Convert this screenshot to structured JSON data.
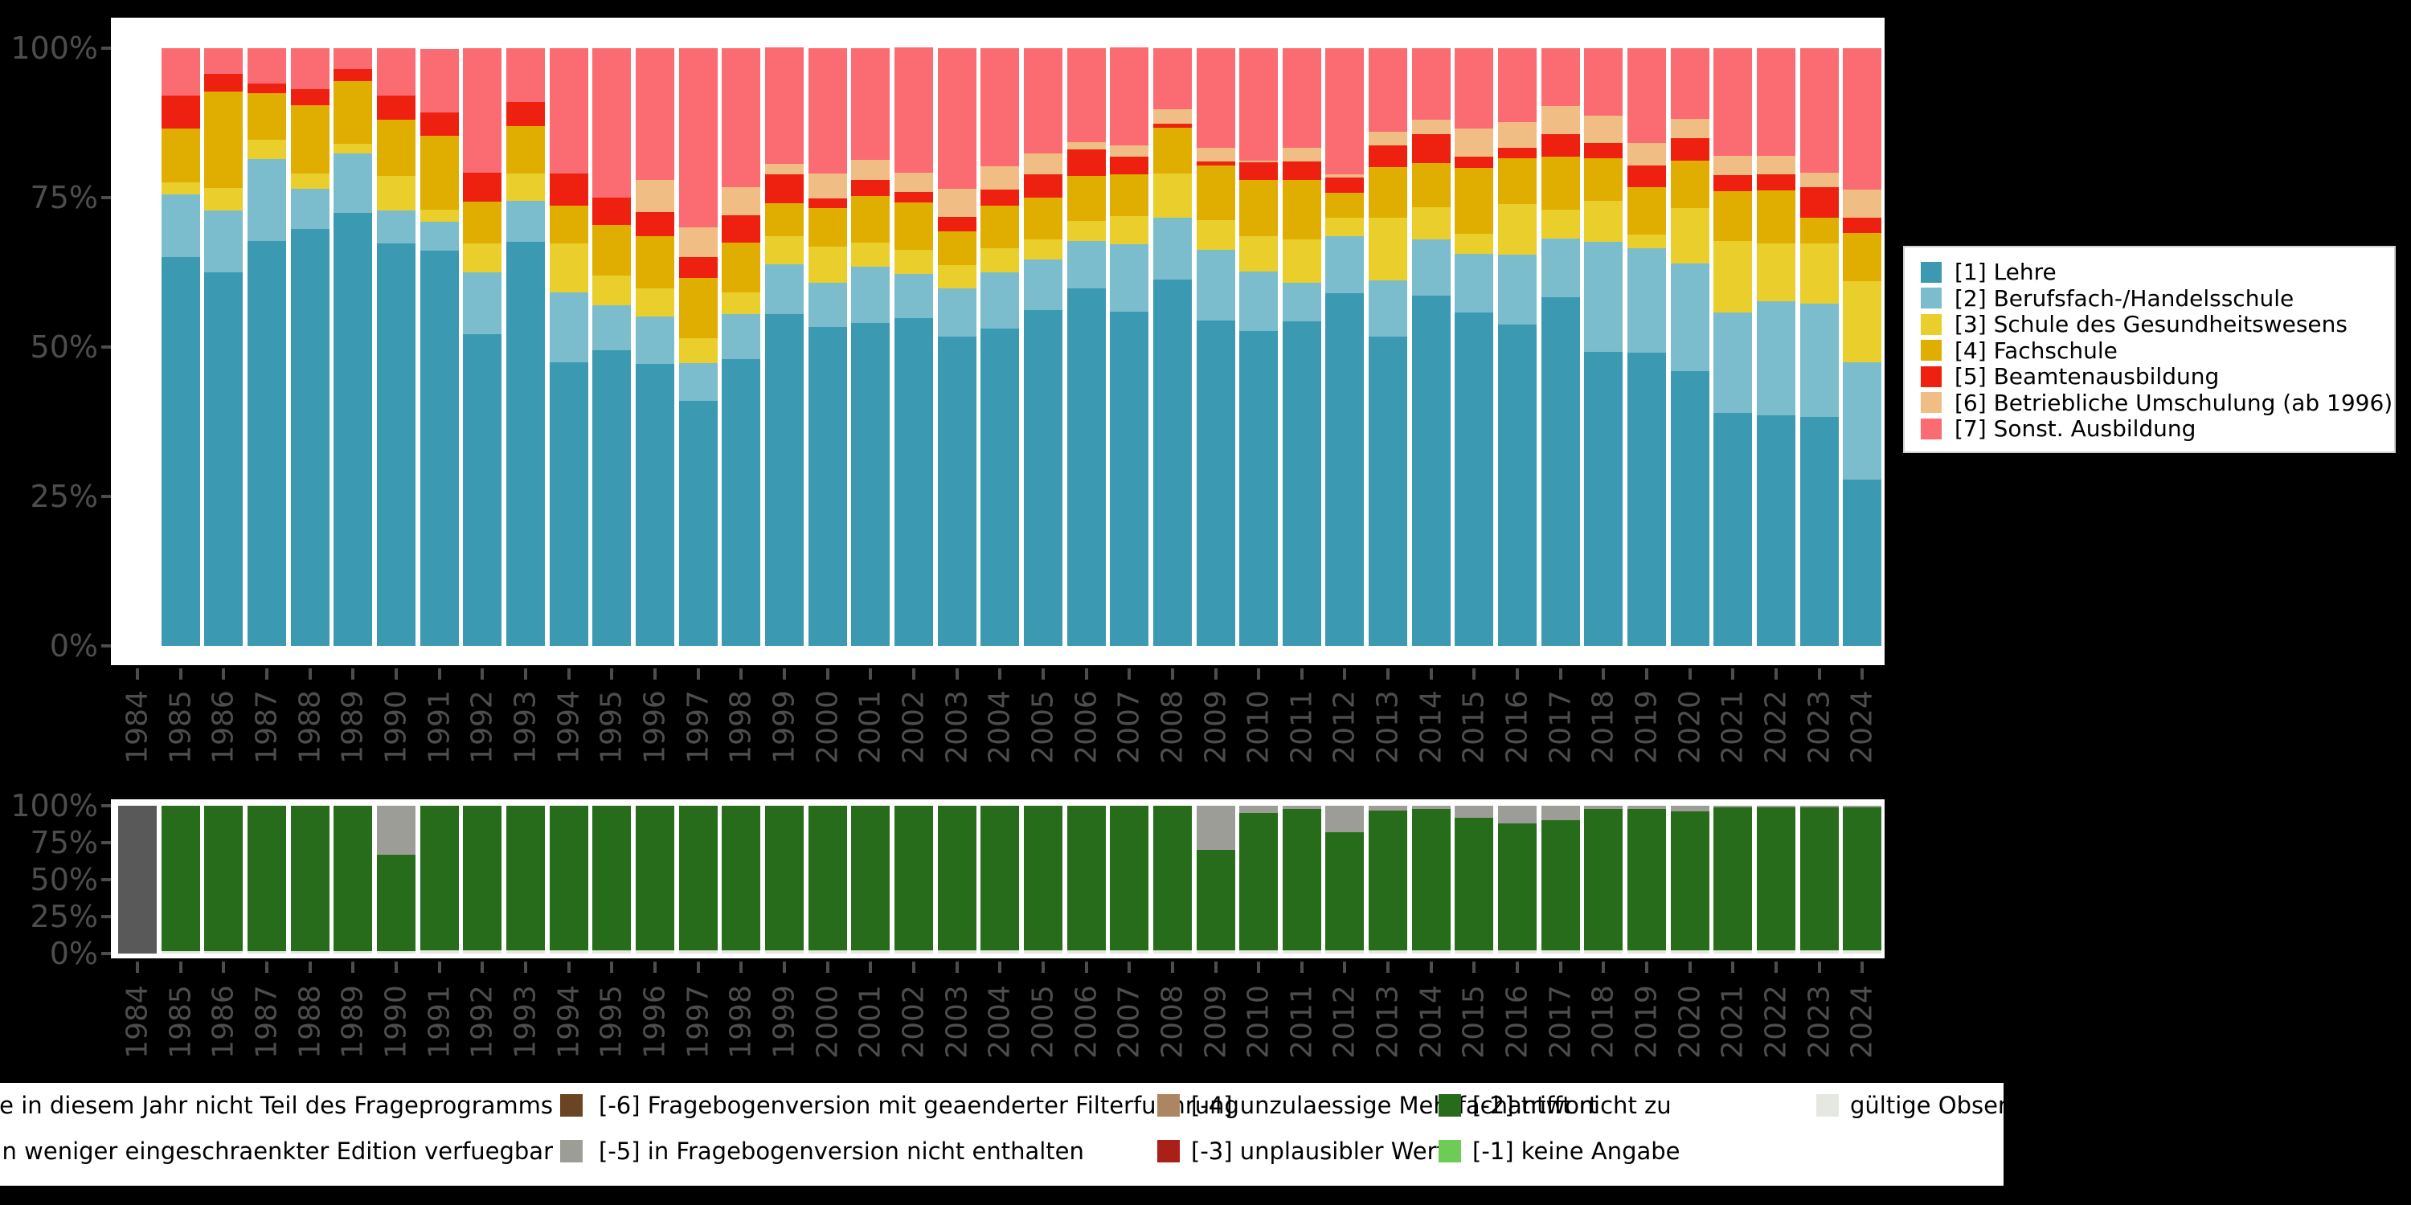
{
  "colors": {
    "background": "#000000",
    "panel": "#ffffff",
    "axis_text": "#4d4d4d"
  },
  "chart_data": [
    {
      "name": "ausbildung-typ",
      "type": "bar",
      "subtype": "stacked-percent",
      "ylabel": "",
      "xlabel": "",
      "ylim": [
        0,
        100
      ],
      "yticks": [
        "100%",
        "75%",
        "50%",
        "25%",
        "0%"
      ],
      "grid": false,
      "categories": [
        1984,
        1985,
        1986,
        1987,
        1988,
        1989,
        1990,
        1991,
        1992,
        1993,
        1994,
        1995,
        1996,
        1997,
        1998,
        1999,
        2000,
        2001,
        2002,
        2003,
        2004,
        2005,
        2006,
        2007,
        2008,
        2009,
        2010,
        2011,
        2012,
        2013,
        2014,
        2015,
        2016,
        2017,
        2018,
        2019,
        2020,
        2021,
        2022,
        2023,
        2024
      ],
      "series": [
        {
          "name": "[1] Lehre",
          "color": "#3C99B2",
          "values": [
            0,
            65.1,
            62.5,
            67.8,
            69.7,
            72.4,
            67.3,
            66.1,
            52.1,
            67.6,
            47.4,
            49.5,
            47.2,
            41,
            48,
            55.5,
            53.4,
            54.1,
            54.8,
            51.7,
            53.1,
            56.2,
            59.8,
            55.9,
            61.3,
            54.4,
            52.7,
            54.3,
            59,
            51.7,
            58.6,
            55.8,
            53.8,
            58.3,
            49.2,
            49,
            46,
            39,
            38.6,
            38.3,
            27.8
          ]
        },
        {
          "name": "[2] Berufsfach-/Handelsschule",
          "color": "#7CBDCD",
          "values": [
            0,
            10.4,
            10.4,
            13.7,
            6.8,
            10,
            5.5,
            4.9,
            10.4,
            6.8,
            11.7,
            7.5,
            7.9,
            6.3,
            7.5,
            8.3,
            7.4,
            9.3,
            7.4,
            8.1,
            9.4,
            8.4,
            7.9,
            11.3,
            10.4,
            11.9,
            10,
            6.5,
            9.5,
            9.5,
            9.4,
            9.8,
            11.7,
            9.9,
            18.4,
            17.6,
            18,
            16.8,
            19,
            19,
            19.7
          ]
        },
        {
          "name": "[3] Schule des Gesundheitswesens",
          "color": "#E9CE2C",
          "values": [
            0,
            2,
            3.7,
            3.2,
            2.6,
            1.6,
            5.8,
            2,
            4.8,
            4.7,
            8.2,
            5,
            4.7,
            4.2,
            3.6,
            4.7,
            6,
            4.1,
            4.1,
            3.9,
            4.1,
            3.4,
            3.4,
            4.7,
            7.4,
            4.9,
            5.8,
            7.2,
            3.1,
            10.4,
            5.4,
            3.4,
            8.4,
            4.8,
            6.8,
            2.2,
            9.3,
            11.9,
            9.8,
            10,
            13.5
          ]
        },
        {
          "name": "[4] Fachschule",
          "color": "#DFAE00",
          "values": [
            0,
            9,
            16.1,
            7.8,
            11.4,
            10.5,
            9.4,
            12.3,
            7,
            7.8,
            6.3,
            8.4,
            8.7,
            10,
            8.4,
            5.5,
            6.4,
            7.8,
            7.9,
            5.7,
            7,
            7,
            7.5,
            7,
            7.6,
            9.2,
            9.5,
            9.9,
            4.2,
            8.5,
            7.4,
            11,
            7.7,
            8.8,
            7.2,
            8,
            7.9,
            8.4,
            8.8,
            4.4,
            8.1
          ]
        },
        {
          "name": "[5] Beamtenausbildung",
          "color": "#EE2010",
          "values": [
            0,
            5.6,
            3,
            1.6,
            2.6,
            2,
            4.1,
            4,
            4.9,
            4.1,
            5.5,
            4.6,
            4.1,
            3.6,
            4.6,
            4.9,
            1.7,
            2.7,
            1.8,
            2.4,
            2.8,
            3.9,
            4.5,
            2.9,
            0.7,
            0.7,
            2.9,
            3.2,
            2.6,
            3.6,
            4.8,
            1.8,
            1.8,
            3.8,
            2.5,
            3.6,
            3.7,
            2.7,
            2.7,
            5.1,
            2.6
          ]
        },
        {
          "name": "[6] Betriebliche Umschulung (ab 1996)",
          "color": "#F0BE85",
          "values": [
            0,
            0,
            0,
            0,
            0,
            0,
            0,
            0,
            0,
            0,
            0,
            0,
            5.4,
            4.9,
            4.6,
            1.8,
            4.2,
            3.3,
            3.2,
            4.7,
            3.9,
            3.5,
            1.2,
            1.9,
            2.4,
            2.3,
            0.3,
            2.2,
            0.5,
            2.3,
            2.4,
            4.7,
            4.3,
            4.7,
            4.6,
            3.7,
            3.3,
            3.2,
            3.1,
            2.4,
            4.7
          ]
        },
        {
          "name": "[7] Sonst. Ausbildung",
          "color": "#FB6B72",
          "values": [
            0,
            7.9,
            4.3,
            5.9,
            6.9,
            3.5,
            7.9,
            10.6,
            20.8,
            9,
            20.9,
            25,
            22,
            30,
            23.3,
            19.4,
            20.9,
            18.7,
            20.9,
            23.5,
            19.7,
            17.6,
            15.7,
            16.4,
            10.2,
            16.6,
            18.8,
            16.7,
            21.1,
            14,
            12,
            13.5,
            12.3,
            9.7,
            11.3,
            15.9,
            11.8,
            18,
            18,
            20.8,
            23.6
          ]
        }
      ]
    },
    {
      "name": "missings",
      "type": "bar",
      "subtype": "stacked-percent",
      "ylim": [
        0,
        100
      ],
      "yticks": [
        "100%",
        "75%",
        "50%",
        "25%",
        "0%"
      ],
      "grid": false,
      "categories": [
        1984,
        1985,
        1986,
        1987,
        1988,
        1989,
        1990,
        1991,
        1992,
        1993,
        1994,
        1995,
        1996,
        1997,
        1998,
        1999,
        2000,
        2001,
        2002,
        2003,
        2004,
        2005,
        2006,
        2007,
        2008,
        2009,
        2010,
        2011,
        2012,
        2013,
        2014,
        2015,
        2016,
        2017,
        2018,
        2019,
        2020,
        2021,
        2022,
        2023,
        2024
      ],
      "series": [
        {
          "name": "gueltige Observationen",
          "color": "#E5E8E1",
          "values": [
            0,
            1.5,
            1.5,
            1.5,
            1.5,
            1.5,
            1.5,
            2,
            2,
            2,
            2,
            2,
            2,
            2,
            2,
            2,
            2,
            2,
            2,
            2,
            2,
            2,
            2,
            2,
            2,
            2,
            2,
            2,
            2,
            2,
            2,
            2,
            2,
            2,
            2,
            2,
            2,
            2,
            2,
            2,
            2
          ]
        },
        {
          "name": "[-2] trifft nicht zu",
          "color": "#276C1A",
          "values": [
            0,
            98.5,
            98.5,
            98.5,
            98.5,
            98.5,
            65.5,
            98,
            98,
            98,
            98,
            98,
            98,
            98,
            98,
            98,
            98,
            98,
            98,
            98,
            98,
            98,
            98,
            98,
            98,
            68,
            93,
            96,
            80,
            95,
            96,
            90,
            86,
            88,
            96,
            96,
            94,
            97,
            97,
            97,
            97
          ]
        },
        {
          "name": "[-5] in Fragebogenversion nicht enthalten",
          "color": "#9D9D97",
          "values": [
            0,
            0,
            0,
            0,
            0,
            0,
            33,
            0,
            0,
            0,
            0,
            0,
            0,
            0,
            0,
            0,
            0,
            0,
            0,
            0,
            0,
            0,
            0,
            0,
            0,
            30,
            5,
            2,
            18,
            3,
            2,
            8,
            12,
            10,
            2,
            2,
            4,
            1,
            1,
            1,
            1
          ]
        },
        {
          "name": "Frage in diesem Jahr nicht Teil des Frageprogramms",
          "color": "#595959",
          "values": [
            100,
            0,
            0,
            0,
            0,
            0,
            0,
            0,
            0,
            0,
            0,
            0,
            0,
            0,
            0,
            0,
            0,
            0,
            0,
            0,
            0,
            0,
            0,
            0,
            0,
            0,
            0,
            0,
            0,
            0,
            0,
            0,
            0,
            0,
            0,
            0,
            0,
            0,
            0,
            0,
            0
          ]
        }
      ]
    }
  ],
  "legend": {
    "position": "right",
    "items": [
      {
        "label": "[1] Lehre",
        "color": "#3C99B2"
      },
      {
        "label": "[2] Berufsfach-/Handelsschule",
        "color": "#7CBDCD"
      },
      {
        "label": "[3] Schule des Gesundheitswesens",
        "color": "#E9CE2C"
      },
      {
        "label": "[4] Fachschule",
        "color": "#DFAE00"
      },
      {
        "label": "[5] Beamtenausbildung",
        "color": "#EE2010"
      },
      {
        "label": "[6] Betriebliche Umschulung (ab 1996)",
        "color": "#F0BE85"
      },
      {
        "label": "[7] Sonst. Ausbildung",
        "color": "#FB6B72"
      }
    ]
  },
  "missing_legend": {
    "col1": [
      {
        "label": "ge in diesem Jahr nicht Teil des Frageprogramms"
      },
      {
        "label": "r in weniger eingeschraenkter Edition verfuegbar"
      }
    ],
    "col2": [
      {
        "label": "[-6] Fragebogenversion mit geaenderter Filterfuehrung",
        "color": "#6B4423"
      },
      {
        "label": "[-5] in Fragebogenversion nicht enthalten",
        "color": "#9D9D97"
      }
    ],
    "col3": [
      {
        "label": "[-4] unzulaessige Mehrfachantwort",
        "color": "#AC8662"
      },
      {
        "label": "[-3] unplausibler Wert",
        "color": "#AA2018"
      }
    ],
    "col4": [
      {
        "label": "[-2] trifft nicht zu",
        "color": "#276C1A"
      },
      {
        "label": "[-1] keine Angabe",
        "color": "#6DCB56"
      }
    ],
    "col5": [
      {
        "label": "gültige Observationen",
        "color": "#E5E8E1"
      }
    ]
  }
}
